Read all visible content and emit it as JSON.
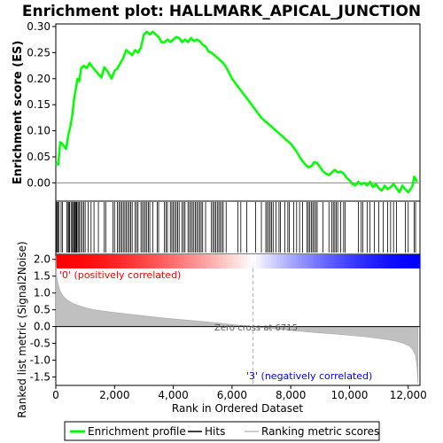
{
  "chart_data": {
    "type": "line",
    "title": "Enrichment plot: HALLMARK_APICAL_JUNCTION",
    "xlabel": "Rank in Ordered Dataset",
    "top_ylabel": "Enrichment score (ES)",
    "bottom_ylabel": "Ranked list metric (Signal2Noise)",
    "xlim": [
      0,
      12400
    ],
    "top_ylim": [
      -0.035,
      0.305
    ],
    "bottom_ylim": [
      -1.75,
      2.15
    ],
    "x_ticks": [
      0,
      2000,
      4000,
      6000,
      8000,
      10000,
      12000
    ],
    "x_tick_labels": [
      "0",
      "2,000",
      "4,000",
      "6,000",
      "8,000",
      "10,000",
      "12,000"
    ],
    "top_y_ticks": [
      0.0,
      0.05,
      0.1,
      0.15,
      0.2,
      0.25,
      0.3
    ],
    "top_y_tick_labels": [
      "0.00",
      "0.05",
      "0.10",
      "0.15",
      "0.20",
      "0.25",
      "0.30"
    ],
    "bottom_y_ticks": [
      -1.5,
      -1.0,
      -0.5,
      0.0,
      0.5,
      1.0,
      1.5,
      2.0
    ],
    "bottom_y_tick_labels": [
      "-1.5",
      "-1.0",
      "-0.5",
      "0.0",
      "0.5",
      "1.0",
      "1.5",
      "2.0"
    ],
    "series": [
      {
        "name": "Enrichment profile",
        "color": "#00ff00",
        "x": [
          0,
          80,
          150,
          220,
          350,
          420,
          500,
          560,
          620,
          680,
          740,
          800,
          860,
          950,
          1050,
          1150,
          1250,
          1400,
          1550,
          1650,
          1750,
          1900,
          2000,
          2100,
          2200,
          2300,
          2400,
          2500,
          2600,
          2700,
          2800,
          2900,
          3000,
          3100,
          3200,
          3300,
          3400,
          3500,
          3600,
          3700,
          3800,
          3900,
          4000,
          4100,
          4200,
          4300,
          4400,
          4500,
          4600,
          4700,
          4800,
          4900,
          5000,
          5100,
          5200,
          5300,
          5400,
          5500,
          5600,
          5700,
          5800,
          6000,
          6200,
          6400,
          6600,
          6800,
          7000,
          7200,
          7400,
          7600,
          7800,
          8000,
          8100,
          8200,
          8300,
          8400,
          8500,
          8600,
          8700,
          8800,
          8900,
          9000,
          9100,
          9200,
          9300,
          9400,
          9500,
          9600,
          9700,
          9800,
          9900,
          10000,
          10100,
          10200,
          10300,
          10400,
          10500,
          10600,
          10700,
          10800,
          10900,
          11000,
          11100,
          11200,
          11300,
          11400,
          11500,
          11600,
          11700,
          11800,
          11900,
          12000,
          12100,
          12150,
          12200,
          12250,
          12300
        ],
        "y": [
          0.038,
          0.035,
          0.078,
          0.075,
          0.065,
          0.09,
          0.11,
          0.13,
          0.16,
          0.18,
          0.2,
          0.195,
          0.22,
          0.225,
          0.22,
          0.23,
          0.222,
          0.212,
          0.202,
          0.222,
          0.215,
          0.2,
          0.215,
          0.22,
          0.23,
          0.24,
          0.255,
          0.25,
          0.245,
          0.255,
          0.25,
          0.26,
          0.285,
          0.29,
          0.285,
          0.29,
          0.285,
          0.28,
          0.27,
          0.27,
          0.275,
          0.27,
          0.275,
          0.28,
          0.278,
          0.27,
          0.275,
          0.27,
          0.278,
          0.272,
          0.275,
          0.272,
          0.265,
          0.262,
          0.252,
          0.25,
          0.245,
          0.24,
          0.235,
          0.23,
          0.222,
          0.2,
          0.185,
          0.17,
          0.155,
          0.14,
          0.125,
          0.115,
          0.105,
          0.095,
          0.085,
          0.075,
          0.068,
          0.06,
          0.05,
          0.042,
          0.035,
          0.03,
          0.032,
          0.04,
          0.038,
          0.03,
          0.022,
          0.018,
          0.015,
          0.02,
          0.025,
          0.02,
          0.022,
          0.018,
          0.01,
          0.005,
          -0.002,
          -0.005,
          0.002,
          -0.003,
          0.0,
          -0.005,
          0.002,
          -0.008,
          -0.002,
          -0.01,
          -0.015,
          -0.005,
          -0.012,
          -0.008,
          -0.002,
          -0.01,
          -0.018,
          -0.005,
          -0.012,
          -0.018,
          -0.01,
          -0.005,
          0.012,
          0.008,
          0.002
        ]
      }
    ],
    "hits": [
      15,
      40,
      80,
      100,
      180,
      230,
      380,
      420,
      450,
      470,
      520,
      560,
      600,
      620,
      650,
      680,
      700,
      720,
      760,
      800,
      850,
      900,
      950,
      1000,
      1100,
      1200,
      1300,
      1450,
      1650,
      1700,
      1950,
      2000,
      2100,
      2150,
      2200,
      2250,
      2300,
      2350,
      2400,
      2450,
      2500,
      2550,
      2600,
      2700,
      2750,
      2800,
      2900,
      2950,
      3000,
      3050,
      3100,
      3150,
      3200,
      3300,
      3450,
      3500,
      3700,
      3750,
      3800,
      3900,
      3950,
      4000,
      4050,
      4100,
      4150,
      4200,
      4300,
      4350,
      4400,
      4500,
      4550,
      4600,
      4650,
      4700,
      4750,
      4800,
      4850,
      4900,
      4950,
      5000,
      5100,
      5300,
      5350,
      5400,
      5450,
      5500,
      5550,
      5600,
      5650,
      5700,
      5800,
      6200,
      6300,
      6500,
      6800,
      7000,
      7150,
      7200,
      7250,
      7300,
      7350,
      7400,
      7500,
      7600,
      7650,
      7800,
      7900,
      7950,
      8100,
      8200,
      8300,
      8400,
      8550,
      8600,
      8650,
      8700,
      8750,
      8800,
      8850,
      8900,
      9100,
      9300,
      9400,
      9450,
      9500,
      9550,
      9600,
      9700,
      9800,
      9850,
      10300,
      10400,
      10450,
      10600,
      10700,
      10850,
      11000,
      11150,
      11300,
      11400,
      11500,
      11600,
      11900,
      12000,
      12200,
      12250
    ],
    "metric_curve": {
      "x": [
        0,
        30,
        80,
        150,
        250,
        400,
        600,
        800,
        1000,
        1300,
        1600,
        2000,
        2500,
        3000,
        3500,
        4000,
        4500,
        5000,
        5500,
        6000,
        6500,
        6715,
        7000,
        7500,
        8000,
        8500,
        9000,
        9500,
        10000,
        10500,
        11000,
        11400,
        11700,
        11900,
        12050,
        12150,
        12250,
        12300,
        12330
      ],
      "y": [
        2.1,
        1.5,
        1.25,
        1.05,
        0.9,
        0.78,
        0.68,
        0.62,
        0.56,
        0.5,
        0.46,
        0.42,
        0.37,
        0.32,
        0.27,
        0.23,
        0.19,
        0.15,
        0.11,
        0.06,
        0.02,
        0.0,
        -0.03,
        -0.07,
        -0.11,
        -0.15,
        -0.19,
        -0.22,
        -0.26,
        -0.3,
        -0.35,
        -0.4,
        -0.46,
        -0.52,
        -0.58,
        -0.68,
        -0.85,
        -1.2,
        -1.7
      ]
    },
    "zero_cross_label": "Zero cross at 6715",
    "zero_cross_x": 6715,
    "positive_label": "'0' (positively correlated)",
    "negative_label": "'3' (negatively correlated)",
    "legend": {
      "placement": "bottom",
      "items": [
        "Enrichment profile",
        "Hits",
        "Ranking metric scores"
      ]
    },
    "colors": {
      "profile": "#00ff00",
      "hit": "#000000",
      "metric_fill": "#c0c0c0",
      "positive": "#ff0000",
      "negative": "#0000ff",
      "zero_line": "#000000",
      "zero_cross_line": "#b0b0b0"
    }
  }
}
